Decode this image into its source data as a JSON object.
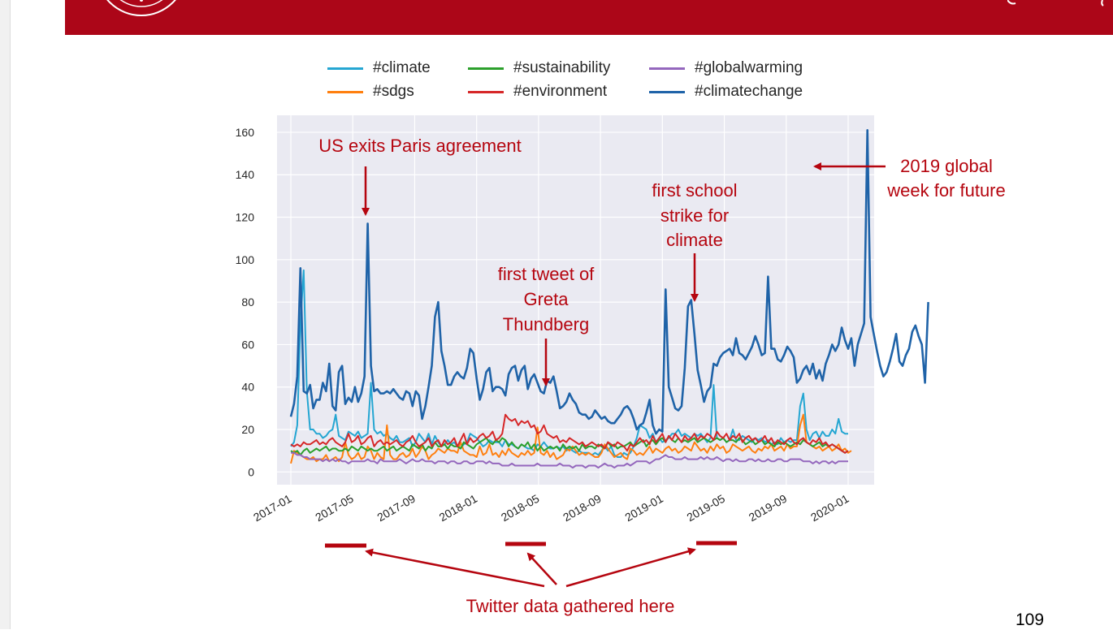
{
  "page": {
    "number": "109"
  },
  "colors": {
    "header": "#ac0618",
    "annotation": "#b5050f",
    "plot_bg": "#eaeaf2"
  },
  "chart_data": {
    "type": "line",
    "title": "",
    "xlabel": "",
    "ylabel": "",
    "x_tick_labels": [
      "2017-01",
      "2017-05",
      "2017-09",
      "2018-01",
      "2018-05",
      "2018-09",
      "2019-01",
      "2019-05",
      "2019-09",
      "2020-01"
    ],
    "y_ticks": [
      0,
      20,
      40,
      60,
      80,
      100,
      120,
      140,
      160
    ],
    "ylim": [
      -6,
      168
    ],
    "grid": true,
    "legend_position": "top",
    "x_start": "2017-01",
    "x_step": "1 week",
    "series": [
      {
        "name": "#climate",
        "color": "#25a6d2",
        "values": [
          12,
          14,
          22,
          70,
          95,
          38,
          20,
          20,
          18,
          18,
          16,
          17,
          19,
          20,
          27,
          17,
          16,
          15,
          19,
          18,
          17,
          19,
          16,
          17,
          18,
          42,
          20,
          18,
          19,
          17,
          18,
          16,
          15,
          17,
          14,
          14,
          15,
          16,
          12,
          14,
          18,
          16,
          14,
          18,
          13,
          17,
          14,
          12,
          13,
          15,
          13,
          14,
          12,
          11,
          13,
          14,
          18,
          17,
          16,
          14,
          12,
          13,
          15,
          14,
          14,
          14,
          12,
          15,
          13,
          13,
          12,
          11,
          13,
          12,
          11,
          11,
          10,
          13,
          12,
          14,
          12,
          11,
          11,
          12,
          11,
          12,
          10,
          11,
          10,
          9,
          10,
          9,
          9,
          9,
          8,
          9,
          8,
          10,
          12,
          10,
          12,
          8,
          7,
          7,
          9,
          8,
          9,
          12,
          16,
          22,
          21,
          20,
          16,
          18,
          14,
          16,
          14,
          15,
          16,
          18,
          18,
          20,
          17,
          18,
          17,
          16,
          18,
          17,
          18,
          16,
          14,
          16,
          41,
          16,
          15,
          16,
          14,
          15,
          20,
          15,
          15,
          17,
          16,
          15,
          14,
          16,
          15,
          16,
          14,
          15,
          13,
          14,
          13,
          16,
          14,
          15,
          14,
          15,
          15,
          31,
          37,
          20,
          15,
          18,
          19,
          16,
          19,
          17,
          17,
          20,
          18,
          25,
          19,
          18,
          18
        ]
      },
      {
        "name": "#sdgs",
        "color": "#ff7f0e",
        "values": [
          4,
          10,
          9,
          8,
          7,
          6,
          6,
          7,
          5,
          6,
          6,
          8,
          5,
          6,
          7,
          5,
          7,
          14,
          8,
          6,
          7,
          9,
          6,
          7,
          12,
          10,
          6,
          9,
          7,
          6,
          22,
          8,
          6,
          6,
          8,
          9,
          7,
          8,
          11,
          7,
          9,
          12,
          10,
          6,
          8,
          9,
          11,
          10,
          9,
          11,
          10,
          10,
          9,
          14,
          10,
          9,
          8,
          8,
          7,
          12,
          8,
          9,
          13,
          8,
          9,
          7,
          10,
          8,
          11,
          9,
          8,
          7,
          9,
          8,
          10,
          8,
          9,
          21,
          9,
          8,
          10,
          7,
          9,
          6,
          7,
          8,
          11,
          10,
          12,
          10,
          8,
          9,
          8,
          9,
          8,
          7,
          7,
          9,
          13,
          11,
          9,
          7,
          8,
          9,
          7,
          6,
          11,
          10,
          8,
          9,
          8,
          10,
          12,
          9,
          11,
          10,
          9,
          11,
          12,
          10,
          11,
          9,
          10,
          12,
          11,
          10,
          14,
          12,
          10,
          11,
          9,
          12,
          10,
          13,
          11,
          12,
          9,
          10,
          13,
          12,
          11,
          10,
          11,
          12,
          10,
          9,
          11,
          10,
          12,
          11,
          13,
          10,
          11,
          12,
          10,
          13,
          11,
          12,
          12,
          22,
          27,
          14,
          13,
          12,
          11,
          12,
          10,
          11,
          12,
          10,
          11,
          13,
          10,
          11,
          9,
          10
        ]
      },
      {
        "name": "#sustainability",
        "color": "#2ca02c",
        "values": [
          10,
          9,
          10,
          8,
          10,
          11,
          9,
          10,
          11,
          10,
          11,
          12,
          10,
          11,
          11,
          10,
          10,
          11,
          10,
          12,
          11,
          10,
          12,
          11,
          10,
          11,
          10,
          10,
          11,
          12,
          10,
          11,
          12,
          10,
          11,
          12,
          11,
          10,
          13,
          12,
          11,
          13,
          10,
          12,
          11,
          14,
          12,
          12,
          13,
          11,
          13,
          12,
          12,
          11,
          14,
          13,
          12,
          11,
          13,
          14,
          15,
          16,
          14,
          13,
          15,
          14,
          16,
          15,
          12,
          14,
          12,
          11,
          13,
          12,
          14,
          11,
          13,
          10,
          12,
          10,
          11,
          12,
          11,
          12,
          10,
          13,
          11,
          12,
          11,
          12,
          10,
          13,
          11,
          12,
          12,
          11,
          13,
          12,
          11,
          14,
          12,
          13,
          11,
          12,
          12,
          13,
          14,
          12,
          13,
          14,
          15,
          12,
          14,
          15,
          13,
          15,
          16,
          14,
          17,
          15,
          14,
          16,
          14,
          15,
          14,
          15,
          16,
          14,
          15,
          16,
          15,
          14,
          15,
          16,
          15,
          16,
          14,
          15,
          15,
          14,
          16,
          15,
          13,
          14,
          15,
          13,
          14,
          15,
          13,
          14,
          13,
          12,
          14,
          13,
          14,
          13,
          12,
          13,
          14,
          13,
          15,
          14,
          13,
          12,
          13,
          14,
          12,
          13,
          12,
          13,
          12,
          11,
          10,
          9,
          10
        ]
      },
      {
        "name": "#environment",
        "color": "#d62728",
        "values": [
          13,
          12,
          13,
          12,
          14,
          13,
          13,
          14,
          15,
          13,
          14,
          13,
          15,
          16,
          14,
          13,
          12,
          14,
          18,
          14,
          15,
          17,
          13,
          14,
          16,
          17,
          12,
          14,
          15,
          13,
          14,
          13,
          14,
          15,
          13,
          12,
          14,
          15,
          17,
          14,
          12,
          13,
          14,
          16,
          12,
          14,
          15,
          12,
          15,
          13,
          14,
          16,
          12,
          15,
          18,
          13,
          16,
          14,
          15,
          17,
          18,
          16,
          17,
          19,
          15,
          16,
          18,
          27,
          25,
          24,
          25,
          22,
          24,
          23,
          24,
          21,
          22,
          18,
          19,
          22,
          18,
          17,
          16,
          17,
          14,
          15,
          14,
          16,
          15,
          14,
          13,
          14,
          12,
          13,
          14,
          13,
          12,
          13,
          11,
          14,
          13,
          12,
          14,
          13,
          12,
          10,
          13,
          12,
          14,
          16,
          14,
          15,
          13,
          17,
          14,
          16,
          18,
          14,
          17,
          15,
          18,
          16,
          14,
          17,
          15,
          16,
          18,
          15,
          17,
          16,
          18,
          17,
          15,
          19,
          17,
          16,
          18,
          15,
          17,
          16,
          18,
          14,
          16,
          17,
          15,
          16,
          14,
          15,
          17,
          14,
          16,
          13,
          15,
          14,
          13,
          15,
          16,
          14,
          13,
          15,
          16,
          14,
          13,
          15,
          14,
          16,
          13,
          14,
          12,
          13,
          12,
          11,
          10,
          9,
          10
        ]
      },
      {
        "name": "#globalwarming",
        "color": "#9467bd",
        "values": [
          9,
          9,
          8,
          8,
          7,
          7,
          6,
          6,
          6,
          6,
          5,
          6,
          5,
          6,
          5,
          6,
          5,
          5,
          4,
          5,
          5,
          5,
          5,
          5,
          6,
          5,
          5,
          4,
          6,
          5,
          5,
          5,
          5,
          5,
          6,
          5,
          4,
          5,
          6,
          5,
          5,
          6,
          5,
          5,
          5,
          4,
          5,
          5,
          5,
          4,
          5,
          5,
          4,
          4,
          5,
          5,
          4,
          4,
          5,
          5,
          5,
          4,
          5,
          4,
          4,
          4,
          3,
          3,
          3,
          4,
          3,
          3,
          3,
          3,
          3,
          3,
          3,
          4,
          3,
          3,
          3,
          3,
          3,
          3,
          4,
          3,
          3,
          3,
          2,
          3,
          3,
          3,
          2,
          3,
          3,
          3,
          2,
          3,
          4,
          3,
          3,
          2,
          3,
          3,
          3,
          4,
          3,
          4,
          5,
          5,
          5,
          5,
          4,
          5,
          6,
          6,
          7,
          8,
          7,
          7,
          6,
          6,
          6,
          7,
          6,
          6,
          6,
          6,
          7,
          6,
          7,
          6,
          6,
          7,
          6,
          5,
          6,
          6,
          5,
          6,
          5,
          5,
          5,
          6,
          6,
          5,
          6,
          5,
          5,
          6,
          5,
          5,
          6,
          6,
          5,
          5,
          6,
          6,
          6,
          6,
          5,
          5,
          5,
          4,
          5,
          4,
          5,
          5,
          4,
          5,
          4,
          5,
          5,
          5,
          5
        ]
      },
      {
        "name": "#climatechange",
        "color": "#1f63a8",
        "values": [
          26,
          32,
          45,
          96,
          38,
          37,
          41,
          30,
          34,
          34,
          42,
          38,
          51,
          31,
          29,
          47,
          50,
          32,
          35,
          33,
          40,
          33,
          37,
          45,
          117,
          50,
          38,
          39,
          37,
          37,
          38,
          37,
          39,
          37,
          35,
          34,
          38,
          37,
          31,
          38,
          36,
          25,
          31,
          40,
          50,
          73,
          80,
          57,
          50,
          41,
          41,
          45,
          47,
          45,
          44,
          49,
          58,
          56,
          44,
          34,
          39,
          47,
          49,
          38,
          40,
          40,
          39,
          36,
          46,
          49,
          50,
          43,
          48,
          50,
          39,
          44,
          46,
          42,
          38,
          37,
          43,
          42,
          45,
          38,
          30,
          31,
          33,
          37,
          34,
          32,
          28,
          27,
          27,
          25,
          26,
          29,
          27,
          25,
          26,
          24,
          23,
          23,
          25,
          27,
          30,
          31,
          29,
          25,
          20,
          22,
          23,
          28,
          34,
          22,
          18,
          20,
          19,
          86,
          40,
          35,
          30,
          29,
          31,
          49,
          78,
          81,
          65,
          48,
          41,
          33,
          38,
          40,
          51,
          50,
          54,
          56,
          57,
          58,
          55,
          63,
          56,
          55,
          53,
          56,
          59,
          64,
          60,
          55,
          56,
          92,
          58,
          58,
          53,
          52,
          55,
          59,
          57,
          54,
          42,
          44,
          48,
          50,
          46,
          51,
          44,
          48,
          43,
          51,
          55,
          60,
          57,
          60,
          68,
          62,
          58,
          63,
          50,
          60,
          65,
          70,
          161,
          73,
          65,
          57,
          50,
          45,
          47,
          52,
          58,
          65,
          52,
          50,
          55,
          58,
          66,
          69,
          64,
          60,
          42,
          80
        ]
      }
    ],
    "annotations": {
      "us_exit_paris": "US exits Paris agreement",
      "greta": [
        "first tweet of",
        "Greta",
        "Thundberg"
      ],
      "school_strike": [
        "first school",
        "strike for",
        "climate"
      ],
      "global_week": [
        "2019 global",
        "week for future"
      ],
      "twitter_data": "Twitter data gathered here"
    }
  }
}
